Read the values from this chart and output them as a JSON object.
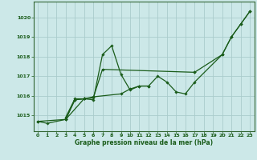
{
  "title": "Graphe pression niveau de la mer (hPa)",
  "bg_color": "#cce8e8",
  "grid_color": "#aacccc",
  "line_color": "#1a5c1a",
  "spine_color": "#336633",
  "xlim": [
    -0.5,
    23.5
  ],
  "ylim": [
    1014.2,
    1020.8
  ],
  "yticks": [
    1015,
    1016,
    1017,
    1018,
    1019,
    1020
  ],
  "xtick_labels": [
    "0",
    "1",
    "2",
    "3",
    "4",
    "5",
    "6",
    "7",
    "8",
    "9",
    "10",
    "11",
    "12",
    "13",
    "14",
    "15",
    "16",
    "17",
    "18",
    "19",
    "20",
    "21",
    "22",
    "23"
  ],
  "series": [
    [
      1014.7,
      1014.6,
      null,
      1014.8,
      1015.8,
      1015.85,
      1015.8,
      1018.1,
      1018.55,
      1017.1,
      1016.3,
      1016.5,
      1016.5,
      1017.0,
      1016.7,
      1016.2,
      1016.1,
      1016.7,
      null,
      null,
      1018.1,
      1019.0,
      1019.65,
      1020.3
    ],
    [
      1014.7,
      null,
      null,
      1014.8,
      1015.8,
      1015.85,
      1015.9,
      1017.35,
      null,
      null,
      null,
      null,
      null,
      null,
      null,
      null,
      null,
      1017.2,
      null,
      null,
      null,
      null,
      null,
      null
    ],
    [
      null,
      null,
      null,
      1014.8,
      null,
      1015.85,
      1015.95,
      null,
      null,
      1016.1,
      1016.35,
      1016.5,
      1016.5,
      null,
      null,
      null,
      null,
      null,
      null,
      null,
      null,
      null,
      null,
      null
    ],
    [
      null,
      null,
      null,
      1014.9,
      1015.85,
      1015.85,
      null,
      null,
      null,
      null,
      null,
      null,
      null,
      null,
      null,
      null,
      null,
      null,
      null,
      null,
      null,
      null,
      null,
      null
    ],
    [
      null,
      null,
      null,
      null,
      null,
      null,
      null,
      null,
      null,
      null,
      null,
      null,
      null,
      null,
      null,
      null,
      null,
      1017.2,
      null,
      null,
      1018.1,
      1019.0,
      1019.65,
      1020.3
    ]
  ]
}
